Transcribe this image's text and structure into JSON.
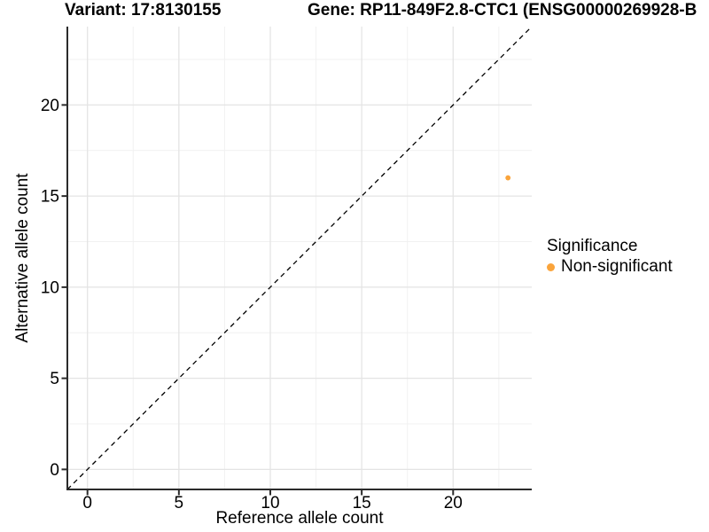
{
  "chart_data": {
    "type": "scatter",
    "title_left": "Variant: 17:8130155",
    "title_right": "Gene: RP11-849F2.8-CTC1 (ENSG00000269928-B",
    "xlabel": "Reference allele count",
    "ylabel": "Alternative allele count",
    "xlim": [
      -1.1,
      24.3
    ],
    "ylim": [
      -1.1,
      24.3
    ],
    "x_major_ticks": [
      0,
      5,
      10,
      15,
      20
    ],
    "y_major_ticks": [
      0,
      5,
      10,
      15,
      20
    ],
    "x_minor_ticks": [
      2.5,
      7.5,
      12.5,
      17.5,
      22.5
    ],
    "y_minor_ticks": [
      2.5,
      7.5,
      12.5,
      17.5,
      22.5
    ],
    "grid": true,
    "points": [
      {
        "x": 23,
        "y": 16,
        "series": "Non-significant"
      }
    ],
    "identity_line": {
      "slope": 1,
      "intercept": 0,
      "style": "dashed"
    },
    "legend": {
      "title": "Significance",
      "position": "right",
      "items": [
        {
          "label": "Non-significant",
          "color": "#FAA43B"
        }
      ]
    },
    "colors": {
      "point": "#FAA43B",
      "grid_major": "#E4E4E4",
      "grid_minor": "#F1F1F1",
      "axis_line": "#2B2B2B",
      "identity_line": "#000000",
      "tick_text": "#000000",
      "background": "#FFFFFF"
    }
  }
}
